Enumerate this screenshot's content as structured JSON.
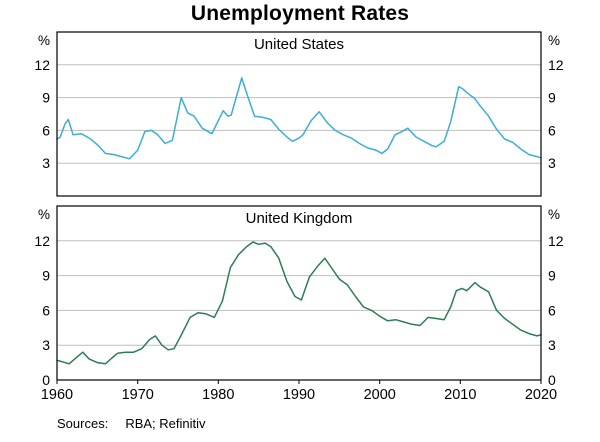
{
  "title": "Unemployment Rates",
  "sources": {
    "label": "Sources:",
    "text": "RBA; Refinitiv"
  },
  "colors": {
    "us_line": "#3caed4",
    "uk_line": "#2e7d52",
    "grid": "#bfbfbf",
    "axis": "#000000",
    "text": "#000000"
  },
  "x_axis": {
    "range": [
      1960,
      2020
    ],
    "ticks": [
      1960,
      1970,
      1980,
      1990,
      2000,
      2010,
      2020
    ]
  },
  "chart_data": [
    {
      "type": "line",
      "panel": "top",
      "series_key": "us",
      "title": "United States",
      "series_name": "United States unemployment rate",
      "unit": "%",
      "color_key": "us_line",
      "ylim": [
        0,
        15
      ],
      "yticks": [
        3,
        6,
        9,
        12
      ],
      "xlim": [
        1960,
        2020
      ],
      "points": [
        [
          1960.0,
          5.2
        ],
        [
          1960.4,
          5.4
        ],
        [
          1961.0,
          6.6
        ],
        [
          1961.4,
          7.0
        ],
        [
          1962.0,
          5.6
        ],
        [
          1963.0,
          5.7
        ],
        [
          1964.0,
          5.3
        ],
        [
          1965.0,
          4.7
        ],
        [
          1966.0,
          3.9
        ],
        [
          1967.0,
          3.8
        ],
        [
          1968.0,
          3.6
        ],
        [
          1969.0,
          3.4
        ],
        [
          1970.0,
          4.2
        ],
        [
          1970.9,
          5.9
        ],
        [
          1971.7,
          6.0
        ],
        [
          1972.5,
          5.6
        ],
        [
          1973.4,
          4.8
        ],
        [
          1974.3,
          5.1
        ],
        [
          1975.4,
          9.0
        ],
        [
          1976.2,
          7.6
        ],
        [
          1977.0,
          7.3
        ],
        [
          1978.0,
          6.2
        ],
        [
          1979.2,
          5.7
        ],
        [
          1980.6,
          7.8
        ],
        [
          1981.2,
          7.3
        ],
        [
          1981.6,
          7.4
        ],
        [
          1982.9,
          10.8
        ],
        [
          1983.6,
          9.2
        ],
        [
          1984.5,
          7.3
        ],
        [
          1985.5,
          7.2
        ],
        [
          1986.5,
          7.0
        ],
        [
          1987.5,
          6.1
        ],
        [
          1988.5,
          5.4
        ],
        [
          1989.2,
          5.0
        ],
        [
          1990.0,
          5.3
        ],
        [
          1990.5,
          5.6
        ],
        [
          1991.5,
          6.9
        ],
        [
          1992.5,
          7.7
        ],
        [
          1993.5,
          6.7
        ],
        [
          1994.5,
          6.0
        ],
        [
          1995.5,
          5.6
        ],
        [
          1996.5,
          5.3
        ],
        [
          1997.5,
          4.8
        ],
        [
          1998.5,
          4.4
        ],
        [
          1999.5,
          4.2
        ],
        [
          2000.3,
          3.9
        ],
        [
          2001.0,
          4.3
        ],
        [
          2001.9,
          5.6
        ],
        [
          2002.5,
          5.8
        ],
        [
          2003.5,
          6.2
        ],
        [
          2004.5,
          5.4
        ],
        [
          2005.5,
          5.0
        ],
        [
          2006.5,
          4.6
        ],
        [
          2007.0,
          4.5
        ],
        [
          2008.0,
          5.0
        ],
        [
          2008.8,
          6.8
        ],
        [
          2009.8,
          10.0
        ],
        [
          2010.3,
          9.8
        ],
        [
          2010.9,
          9.4
        ],
        [
          2011.8,
          8.9
        ],
        [
          2012.5,
          8.2
        ],
        [
          2013.5,
          7.3
        ],
        [
          2014.5,
          6.1
        ],
        [
          2015.5,
          5.2
        ],
        [
          2016.5,
          4.9
        ],
        [
          2017.5,
          4.3
        ],
        [
          2018.5,
          3.8
        ],
        [
          2019.5,
          3.6
        ],
        [
          2019.9,
          3.5
        ]
      ]
    },
    {
      "type": "line",
      "panel": "bottom",
      "series_key": "uk",
      "title": "United Kingdom",
      "series_name": "United Kingdom unemployment rate",
      "unit": "%",
      "color_key": "uk_line",
      "ylim": [
        0,
        15
      ],
      "yticks": [
        0,
        3,
        6,
        9,
        12
      ],
      "xlim": [
        1960,
        2020
      ],
      "points": [
        [
          1960.0,
          1.7
        ],
        [
          1960.5,
          1.6
        ],
        [
          1961.5,
          1.4
        ],
        [
          1962.5,
          2.0
        ],
        [
          1963.2,
          2.4
        ],
        [
          1964.0,
          1.8
        ],
        [
          1965.0,
          1.5
        ],
        [
          1966.0,
          1.4
        ],
        [
          1966.8,
          1.9
        ],
        [
          1967.5,
          2.3
        ],
        [
          1968.5,
          2.4
        ],
        [
          1969.5,
          2.4
        ],
        [
          1970.5,
          2.7
        ],
        [
          1971.5,
          3.5
        ],
        [
          1972.2,
          3.8
        ],
        [
          1973.0,
          3.0
        ],
        [
          1973.8,
          2.6
        ],
        [
          1974.5,
          2.7
        ],
        [
          1975.5,
          4.0
        ],
        [
          1976.5,
          5.4
        ],
        [
          1977.5,
          5.8
        ],
        [
          1978.5,
          5.7
        ],
        [
          1979.5,
          5.4
        ],
        [
          1980.5,
          6.8
        ],
        [
          1981.5,
          9.7
        ],
        [
          1982.5,
          10.8
        ],
        [
          1983.5,
          11.5
        ],
        [
          1984.3,
          11.9
        ],
        [
          1985.0,
          11.7
        ],
        [
          1985.8,
          11.8
        ],
        [
          1986.5,
          11.5
        ],
        [
          1987.5,
          10.5
        ],
        [
          1988.5,
          8.5
        ],
        [
          1989.5,
          7.2
        ],
        [
          1990.3,
          6.9
        ],
        [
          1991.3,
          8.9
        ],
        [
          1992.3,
          9.8
        ],
        [
          1993.2,
          10.5
        ],
        [
          1994.0,
          9.7
        ],
        [
          1995.0,
          8.7
        ],
        [
          1996.0,
          8.2
        ],
        [
          1997.0,
          7.2
        ],
        [
          1998.0,
          6.3
        ],
        [
          1999.0,
          6.0
        ],
        [
          2000.0,
          5.5
        ],
        [
          2001.0,
          5.1
        ],
        [
          2002.0,
          5.2
        ],
        [
          2003.0,
          5.0
        ],
        [
          2004.0,
          4.8
        ],
        [
          2005.0,
          4.7
        ],
        [
          2006.0,
          5.4
        ],
        [
          2007.0,
          5.3
        ],
        [
          2008.0,
          5.2
        ],
        [
          2008.8,
          6.3
        ],
        [
          2009.5,
          7.7
        ],
        [
          2010.2,
          7.9
        ],
        [
          2010.8,
          7.7
        ],
        [
          2011.8,
          8.4
        ],
        [
          2012.5,
          8.0
        ],
        [
          2013.5,
          7.6
        ],
        [
          2014.5,
          6.0
        ],
        [
          2015.5,
          5.3
        ],
        [
          2016.5,
          4.8
        ],
        [
          2017.5,
          4.3
        ],
        [
          2018.5,
          4.0
        ],
        [
          2019.5,
          3.8
        ],
        [
          2020.0,
          3.9
        ]
      ]
    }
  ]
}
